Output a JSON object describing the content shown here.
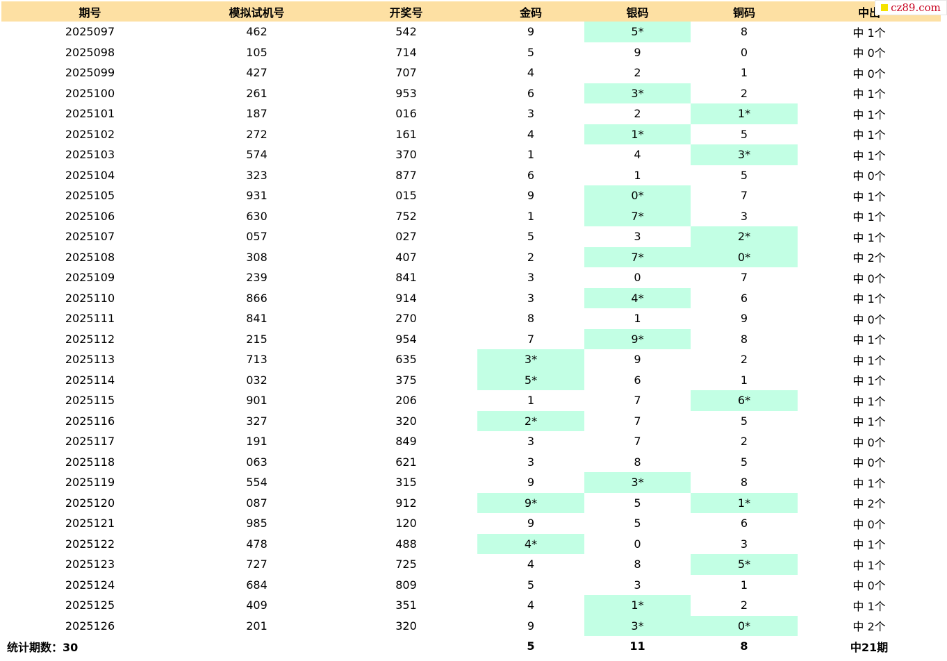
{
  "headers": [
    "期号",
    "模拟试机号",
    "开奖号",
    "金码",
    "银码",
    "铜码",
    "中出"
  ],
  "rows": [
    {
      "period": "2025097",
      "sim": "462",
      "draw": "542",
      "gold": "9",
      "silver": "5*",
      "bronze": "8",
      "hit": "中 1个"
    },
    {
      "period": "2025098",
      "sim": "105",
      "draw": "714",
      "gold": "5",
      "silver": "9",
      "bronze": "0",
      "hit": "中 0个"
    },
    {
      "period": "2025099",
      "sim": "427",
      "draw": "707",
      "gold": "4",
      "silver": "2",
      "bronze": "1",
      "hit": "中 0个"
    },
    {
      "period": "2025100",
      "sim": "261",
      "draw": "953",
      "gold": "6",
      "silver": "3*",
      "bronze": "2",
      "hit": "中 1个"
    },
    {
      "period": "2025101",
      "sim": "187",
      "draw": "016",
      "gold": "3",
      "silver": "2",
      "bronze": "1*",
      "hit": "中 1个"
    },
    {
      "period": "2025102",
      "sim": "272",
      "draw": "161",
      "gold": "4",
      "silver": "1*",
      "bronze": "5",
      "hit": "中 1个"
    },
    {
      "period": "2025103",
      "sim": "574",
      "draw": "370",
      "gold": "1",
      "silver": "4",
      "bronze": "3*",
      "hit": "中 1个"
    },
    {
      "period": "2025104",
      "sim": "323",
      "draw": "877",
      "gold": "6",
      "silver": "1",
      "bronze": "5",
      "hit": "中 0个"
    },
    {
      "period": "2025105",
      "sim": "931",
      "draw": "015",
      "gold": "9",
      "silver": "0*",
      "bronze": "7",
      "hit": "中 1个"
    },
    {
      "period": "2025106",
      "sim": "630",
      "draw": "752",
      "gold": "1",
      "silver": "7*",
      "bronze": "3",
      "hit": "中 1个"
    },
    {
      "period": "2025107",
      "sim": "057",
      "draw": "027",
      "gold": "5",
      "silver": "3",
      "bronze": "2*",
      "hit": "中 1个"
    },
    {
      "period": "2025108",
      "sim": "308",
      "draw": "407",
      "gold": "2",
      "silver": "7*",
      "bronze": "0*",
      "hit": "中 2个"
    },
    {
      "period": "2025109",
      "sim": "239",
      "draw": "841",
      "gold": "3",
      "silver": "0",
      "bronze": "7",
      "hit": "中 0个"
    },
    {
      "period": "2025110",
      "sim": "866",
      "draw": "914",
      "gold": "3",
      "silver": "4*",
      "bronze": "6",
      "hit": "中 1个"
    },
    {
      "period": "2025111",
      "sim": "841",
      "draw": "270",
      "gold": "8",
      "silver": "1",
      "bronze": "9",
      "hit": "中 0个"
    },
    {
      "period": "2025112",
      "sim": "215",
      "draw": "954",
      "gold": "7",
      "silver": "9*",
      "bronze": "8",
      "hit": "中 1个"
    },
    {
      "period": "2025113",
      "sim": "713",
      "draw": "635",
      "gold": "3*",
      "silver": "9",
      "bronze": "2",
      "hit": "中 1个"
    },
    {
      "period": "2025114",
      "sim": "032",
      "draw": "375",
      "gold": "5*",
      "silver": "6",
      "bronze": "1",
      "hit": "中 1个"
    },
    {
      "period": "2025115",
      "sim": "901",
      "draw": "206",
      "gold": "1",
      "silver": "7",
      "bronze": "6*",
      "hit": "中 1个"
    },
    {
      "period": "2025116",
      "sim": "327",
      "draw": "320",
      "gold": "2*",
      "silver": "7",
      "bronze": "5",
      "hit": "中 1个"
    },
    {
      "period": "2025117",
      "sim": "191",
      "draw": "849",
      "gold": "3",
      "silver": "7",
      "bronze": "2",
      "hit": "中 0个"
    },
    {
      "period": "2025118",
      "sim": "063",
      "draw": "621",
      "gold": "3",
      "silver": "8",
      "bronze": "5",
      "hit": "中 0个"
    },
    {
      "period": "2025119",
      "sim": "554",
      "draw": "315",
      "gold": "9",
      "silver": "3*",
      "bronze": "8",
      "hit": "中 1个"
    },
    {
      "period": "2025120",
      "sim": "087",
      "draw": "912",
      "gold": "9*",
      "silver": "5",
      "bronze": "1*",
      "hit": "中 2个"
    },
    {
      "period": "2025121",
      "sim": "985",
      "draw": "120",
      "gold": "9",
      "silver": "5",
      "bronze": "6",
      "hit": "中 0个"
    },
    {
      "period": "2025122",
      "sim": "478",
      "draw": "488",
      "gold": "4*",
      "silver": "0",
      "bronze": "3",
      "hit": "中 1个"
    },
    {
      "period": "2025123",
      "sim": "727",
      "draw": "725",
      "gold": "4",
      "silver": "8",
      "bronze": "5*",
      "hit": "中 1个"
    },
    {
      "period": "2025124",
      "sim": "684",
      "draw": "809",
      "gold": "5",
      "silver": "3",
      "bronze": "1",
      "hit": "中 0个"
    },
    {
      "period": "2025125",
      "sim": "409",
      "draw": "351",
      "gold": "4",
      "silver": "1*",
      "bronze": "2",
      "hit": "中 1个"
    },
    {
      "period": "2025126",
      "sim": "201",
      "draw": "320",
      "gold": "9",
      "silver": "3*",
      "bronze": "0*",
      "hit": "中 2个"
    }
  ],
  "footer": {
    "label": "统计期数：30",
    "gold_total": "5",
    "silver_total": "11",
    "bronze_total": "8",
    "hit_total": "中21期"
  },
  "watermark": "cz89.com",
  "colors": {
    "header_bg": "#fde0a3",
    "hit_bg": "#c2ffe4",
    "watermark_text": "#c8001e"
  }
}
